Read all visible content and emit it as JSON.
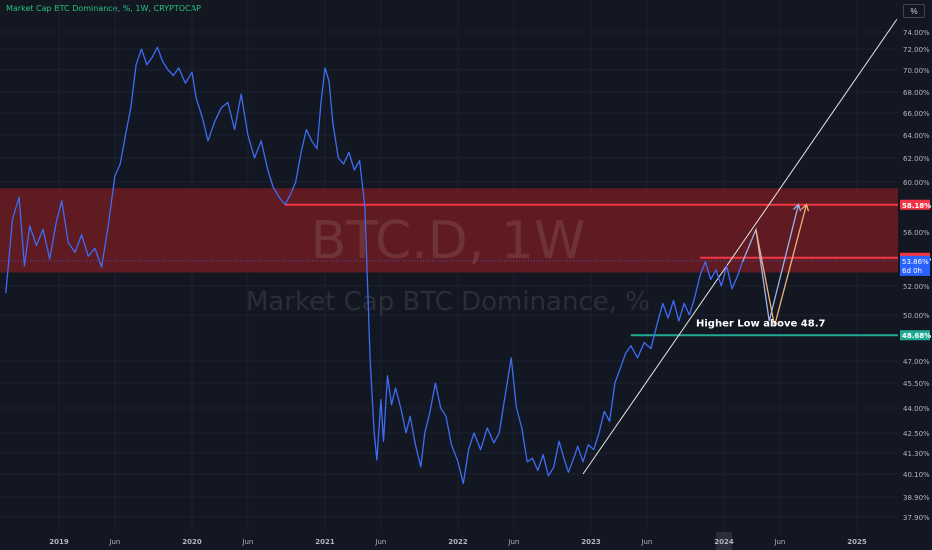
{
  "header": {
    "title": "Market Cap BTC Dominance, %, 1W, CRYPTOCAP",
    "scale_button": "%"
  },
  "colors": {
    "background": "#131722",
    "series": "#3d6cf5",
    "resistance": "#f23645",
    "support": "#22ab94",
    "zone": "#7a1d22",
    "trendline": "#e6e6e6",
    "projection_1": "#9db3e8",
    "projection_2": "#f0b27a",
    "axis_text": "#b2b5be",
    "grid": "#1c2030"
  },
  "chart_data": {
    "type": "line",
    "symbol": "BTC.D, 1W",
    "watermark": [
      "BTC.D, 1W",
      "Market Cap BTC Dominance, %"
    ],
    "series": [
      {
        "name": "",
        "points": [
          [
            2018.6,
            51.5
          ],
          [
            2018.65,
            57.0
          ],
          [
            2018.7,
            58.8
          ],
          [
            2018.74,
            53.5
          ],
          [
            2018.78,
            56.5
          ],
          [
            2018.83,
            55.0
          ],
          [
            2018.88,
            56.2
          ],
          [
            2018.93,
            54.0
          ],
          [
            2018.98,
            56.8
          ],
          [
            2019.02,
            58.5
          ],
          [
            2019.07,
            55.2
          ],
          [
            2019.12,
            54.5
          ],
          [
            2019.17,
            55.8
          ],
          [
            2019.22,
            54.2
          ],
          [
            2019.27,
            54.8
          ],
          [
            2019.32,
            53.4
          ],
          [
            2019.37,
            56.5
          ],
          [
            2019.42,
            60.5
          ],
          [
            2019.46,
            61.5
          ],
          [
            2019.5,
            64.0
          ],
          [
            2019.54,
            66.5
          ],
          [
            2019.58,
            70.5
          ],
          [
            2019.62,
            72.0
          ],
          [
            2019.66,
            70.5
          ],
          [
            2019.7,
            71.2
          ],
          [
            2019.74,
            72.2
          ],
          [
            2019.78,
            70.8
          ],
          [
            2019.82,
            70.0
          ],
          [
            2019.86,
            69.5
          ],
          [
            2019.9,
            70.2
          ],
          [
            2019.95,
            68.8
          ],
          [
            2020.0,
            69.8
          ],
          [
            2020.03,
            67.5
          ],
          [
            2020.08,
            65.5
          ],
          [
            2020.12,
            63.5
          ],
          [
            2020.17,
            65.2
          ],
          [
            2020.22,
            66.5
          ],
          [
            2020.27,
            67.0
          ],
          [
            2020.32,
            64.5
          ],
          [
            2020.37,
            67.8
          ],
          [
            2020.42,
            64.0
          ],
          [
            2020.47,
            62.0
          ],
          [
            2020.52,
            63.5
          ],
          [
            2020.57,
            61.0
          ],
          [
            2020.61,
            59.6
          ],
          [
            2020.66,
            58.7
          ],
          [
            2020.7,
            58.2
          ],
          [
            2020.74,
            59.0
          ],
          [
            2020.78,
            60.0
          ],
          [
            2020.82,
            62.5
          ],
          [
            2020.86,
            64.5
          ],
          [
            2020.9,
            63.5
          ],
          [
            2020.94,
            62.8
          ],
          [
            2020.97,
            67.0
          ],
          [
            2021.0,
            70.2
          ],
          [
            2021.03,
            69.0
          ],
          [
            2021.06,
            65.0
          ],
          [
            2021.1,
            62.0
          ],
          [
            2021.14,
            61.5
          ],
          [
            2021.18,
            62.5
          ],
          [
            2021.22,
            61.0
          ],
          [
            2021.26,
            61.8
          ],
          [
            2021.3,
            58.0
          ],
          [
            2021.34,
            47.0
          ],
          [
            2021.37,
            42.5
          ],
          [
            2021.39,
            40.9
          ],
          [
            2021.42,
            44.5
          ],
          [
            2021.44,
            42.0
          ],
          [
            2021.47,
            46.0
          ],
          [
            2021.5,
            44.2
          ],
          [
            2021.53,
            45.2
          ],
          [
            2021.57,
            44.0
          ],
          [
            2021.61,
            42.5
          ],
          [
            2021.64,
            43.5
          ],
          [
            2021.68,
            41.8
          ],
          [
            2021.72,
            40.5
          ],
          [
            2021.75,
            42.5
          ],
          [
            2021.79,
            43.8
          ],
          [
            2021.83,
            45.5
          ],
          [
            2021.87,
            44.0
          ],
          [
            2021.91,
            43.5
          ],
          [
            2021.95,
            41.8
          ],
          [
            2022.0,
            40.8
          ],
          [
            2022.04,
            39.6
          ],
          [
            2022.08,
            41.5
          ],
          [
            2022.12,
            42.5
          ],
          [
            2022.17,
            41.5
          ],
          [
            2022.22,
            42.8
          ],
          [
            2022.27,
            41.9
          ],
          [
            2022.31,
            42.5
          ],
          [
            2022.35,
            44.5
          ],
          [
            2022.4,
            47.2
          ],
          [
            2022.44,
            44.0
          ],
          [
            2022.48,
            42.8
          ],
          [
            2022.52,
            40.8
          ],
          [
            2022.56,
            41.0
          ],
          [
            2022.6,
            40.3
          ],
          [
            2022.64,
            41.2
          ],
          [
            2022.68,
            40.0
          ],
          [
            2022.72,
            40.5
          ],
          [
            2022.76,
            42.0
          ],
          [
            2022.8,
            40.9
          ],
          [
            2022.83,
            40.2
          ],
          [
            2022.87,
            41.0
          ],
          [
            2022.9,
            41.7
          ],
          [
            2022.94,
            40.8
          ],
          [
            2022.98,
            41.8
          ],
          [
            2023.02,
            41.5
          ],
          [
            2023.06,
            42.5
          ],
          [
            2023.1,
            43.8
          ],
          [
            2023.14,
            43.2
          ],
          [
            2023.18,
            45.5
          ],
          [
            2023.22,
            46.5
          ],
          [
            2023.26,
            47.5
          ],
          [
            2023.3,
            48.0
          ],
          [
            2023.35,
            47.2
          ],
          [
            2023.4,
            48.2
          ],
          [
            2023.45,
            47.8
          ],
          [
            2023.5,
            49.5
          ],
          [
            2023.54,
            50.8
          ],
          [
            2023.58,
            49.8
          ],
          [
            2023.62,
            51.0
          ],
          [
            2023.66,
            49.6
          ],
          [
            2023.7,
            50.8
          ],
          [
            2023.74,
            50.0
          ],
          [
            2023.78,
            51.2
          ],
          [
            2023.82,
            52.8
          ],
          [
            2023.86,
            53.8
          ],
          [
            2023.9,
            52.5
          ],
          [
            2023.94,
            53.2
          ],
          [
            2023.98,
            52.0
          ],
          [
            2024.02,
            53.5
          ],
          [
            2024.06,
            51.8
          ],
          [
            2024.1,
            52.7
          ],
          [
            2024.14,
            53.8
          ]
        ]
      }
    ],
    "x_ticks": [
      {
        "x": 2019.0,
        "label": "2019",
        "year": true
      },
      {
        "x": 2019.42,
        "label": "Jun",
        "year": false
      },
      {
        "x": 2020.0,
        "label": "2020",
        "year": true
      },
      {
        "x": 2020.42,
        "label": "Jun",
        "year": false
      },
      {
        "x": 2021.0,
        "label": "2021",
        "year": true
      },
      {
        "x": 2021.42,
        "label": "Jun",
        "year": false
      },
      {
        "x": 2022.0,
        "label": "2022",
        "year": true
      },
      {
        "x": 2022.42,
        "label": "Jun",
        "year": false
      },
      {
        "x": 2023.0,
        "label": "2023",
        "year": true
      },
      {
        "x": 2023.42,
        "label": "Jun",
        "year": false
      },
      {
        "x": 2024.0,
        "label": "2024",
        "year": true
      },
      {
        "x": 2024.42,
        "label": "Jun",
        "year": false
      },
      {
        "x": 2025.0,
        "label": "2025",
        "year": true
      }
    ],
    "y_ticks": [
      {
        "y": 74,
        "label": "74.00%"
      },
      {
        "y": 72,
        "label": "72.00%"
      },
      {
        "y": 70,
        "label": "70.00%"
      },
      {
        "y": 68,
        "label": "68.00%"
      },
      {
        "y": 66,
        "label": "66.00%"
      },
      {
        "y": 64,
        "label": "64.00%"
      },
      {
        "y": 62,
        "label": "62.00%"
      },
      {
        "y": 60,
        "label": "60.00%"
      },
      {
        "y": 56,
        "label": "56.00%"
      },
      {
        "y": 52,
        "label": "52.00%"
      },
      {
        "y": 50,
        "label": "50.00%"
      },
      {
        "y": 47,
        "label": "47.00%"
      },
      {
        "y": 45.5,
        "label": "45.50%"
      },
      {
        "y": 44,
        "label": "44.00%"
      },
      {
        "y": 42.5,
        "label": "42.50%"
      },
      {
        "y": 41.3,
        "label": "41.30%"
      },
      {
        "y": 40.1,
        "label": "40.10%"
      },
      {
        "y": 38.9,
        "label": "38.90%"
      },
      {
        "y": 37.9,
        "label": "37.90%"
      }
    ],
    "zone": {
      "y_top": 59.5,
      "y_bottom": 53.0
    },
    "levels": [
      {
        "y": 58.18,
        "x_start": 2020.7,
        "label": "58.18%",
        "role": "resistance"
      },
      {
        "y": 54.09,
        "x_start": 2023.82,
        "label": "54.09%",
        "role": "resistance"
      },
      {
        "y": 48.68,
        "x_start": 2023.3,
        "label": "48.68%",
        "role": "support"
      }
    ],
    "current": {
      "value": 53.86,
      "label": "53.86%",
      "countdown": "6d 0h"
    },
    "trendline": {
      "from": [
        2022.94,
        40.1
      ],
      "to": [
        2025.3,
        75.5
      ]
    },
    "projections": [
      {
        "points": [
          [
            2024.14,
            53.8
          ],
          [
            2024.24,
            56.2
          ],
          [
            2024.34,
            49.6
          ],
          [
            2024.56,
            58.2
          ]
        ],
        "color_key": "projection_1"
      },
      {
        "points": [
          [
            2024.24,
            56.2
          ],
          [
            2024.38,
            49.3
          ],
          [
            2024.62,
            58.2
          ]
        ],
        "color_key": "projection_2"
      }
    ],
    "annotation": {
      "text": "Higher Low above 48.7",
      "x": 2024.0,
      "y": 49.3
    },
    "current_marker": {
      "x": 2024.0
    }
  }
}
